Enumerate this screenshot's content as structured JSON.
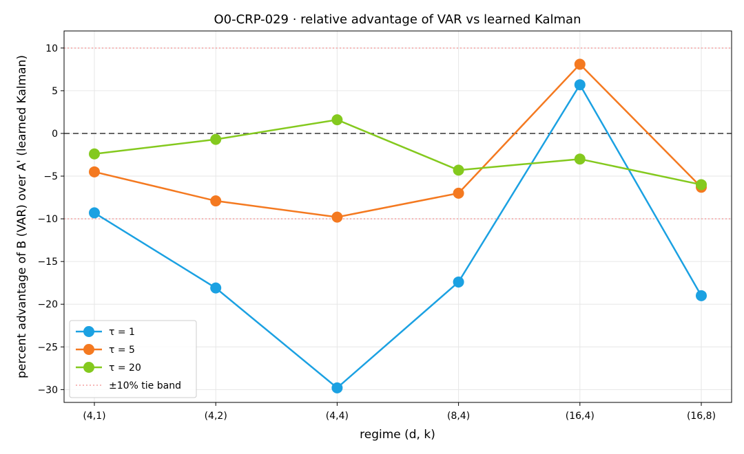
{
  "chart_data": {
    "type": "line",
    "title": "O0-CRP-029 · relative advantage of VAR vs learned Kalman",
    "xlabel": "regime (d, k)",
    "ylabel": "percent advantage of B (VAR) over A' (learned Kalman)",
    "categories": [
      "(4,1)",
      "(4,2)",
      "(4,4)",
      "(8,4)",
      "(16,4)",
      "(16,8)"
    ],
    "ylim": [
      -31.5,
      12
    ],
    "yticks": [
      10,
      5,
      0,
      -5,
      -10,
      -15,
      -20,
      -25,
      -30
    ],
    "ytick_labels": [
      "10",
      "5",
      "0",
      "−5",
      "−10",
      "−15",
      "−20",
      "−25",
      "−30"
    ],
    "grid": true,
    "legend_position": "lower-left",
    "series": [
      {
        "name": "τ = 1",
        "color": "#1ba1e2",
        "values": [
          -9.3,
          -18.1,
          -29.8,
          -17.4,
          5.7,
          -19.0
        ]
      },
      {
        "name": "τ = 5",
        "color": "#f47920",
        "values": [
          -4.5,
          -7.9,
          -9.8,
          -7.0,
          8.1,
          -6.3
        ]
      },
      {
        "name": "τ = 20",
        "color": "#84c91e",
        "values": [
          -2.4,
          -0.7,
          1.6,
          -4.3,
          -3.0,
          -6.0
        ]
      }
    ],
    "reference_lines": [
      {
        "value": 0,
        "style": "dashed",
        "color": "#666666"
      },
      {
        "value": 10,
        "style": "dotted",
        "color": "#f4a0a0"
      },
      {
        "value": -10,
        "style": "dotted",
        "color": "#f4a0a0"
      }
    ],
    "band_legend": {
      "label": "±10% tie band",
      "color": "#f4a0a0"
    }
  }
}
